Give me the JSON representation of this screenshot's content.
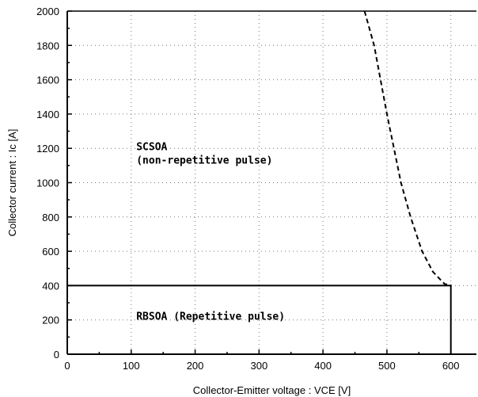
{
  "chart_data": {
    "type": "line",
    "title": "",
    "xlabel": "Collector-Emitter voltage  :  VCE [V]",
    "ylabel": "Collector current  :  Ic [A]",
    "xlim": [
      0,
      640
    ],
    "ylim": [
      0,
      2000
    ],
    "x_ticks": [
      0,
      100,
      200,
      300,
      400,
      500,
      600
    ],
    "y_ticks": [
      0,
      200,
      400,
      600,
      800,
      1000,
      1200,
      1400,
      1600,
      1800,
      2000
    ],
    "grid": true,
    "series": [
      {
        "style": "solid",
        "points": [
          [
            0,
            400
          ],
          [
            600,
            400
          ],
          [
            600,
            0
          ]
        ]
      },
      {
        "style": "dashed",
        "points": [
          [
            465,
            2000
          ],
          [
            480,
            1800
          ],
          [
            490,
            1600
          ],
          [
            500,
            1400
          ],
          [
            511,
            1200
          ],
          [
            522,
            1000
          ],
          [
            537,
            800
          ],
          [
            555,
            600
          ],
          [
            572,
            480
          ],
          [
            590,
            410
          ],
          [
            600,
            400
          ]
        ]
      }
    ],
    "annotations": [
      {
        "lines": [
          "SCSOA",
          "(non-repetitive pulse)"
        ],
        "x": 108,
        "y": 1190
      },
      {
        "lines": [
          "RBSOA (Repetitive pulse)"
        ],
        "x": 108,
        "y": 200
      }
    ]
  }
}
